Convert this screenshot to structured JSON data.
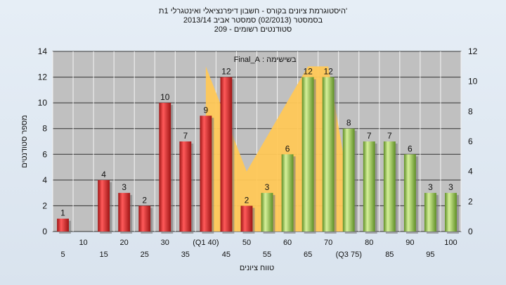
{
  "titles": {
    "line1": "'היסטוגרמת ציונים בקורס - חשבון דיפרנציאלי ואינטגרלי 1ת",
    "line2": "בסמסטר  (02/2013)  סמסטר אביב 2013/14",
    "line3": "סטודנטים רשומים - 209"
  },
  "colors": {
    "fail": "#d32222",
    "pass": "#8cc63f",
    "area": "#ffc857",
    "plot_bg": "#c0c0c0"
  },
  "chart_data": {
    "type": "bar",
    "categories": [
      "5",
      "10",
      "15",
      "20",
      "25",
      "30",
      "35",
      "(Q1 40)",
      "45",
      "50",
      "55",
      "60",
      "65",
      "70",
      "(Q3 75)",
      "80",
      "85",
      "90",
      "95",
      "100"
    ],
    "values": [
      1,
      0,
      4,
      3,
      2,
      10,
      7,
      9,
      12,
      2,
      3,
      6,
      12,
      12,
      8,
      7,
      7,
      6,
      3,
      3
    ],
    "bar_colors": [
      "fail",
      "fail",
      "fail",
      "fail",
      "fail",
      "fail",
      "fail",
      "fail",
      "fail",
      "fail",
      "pass",
      "pass",
      "pass",
      "pass",
      "pass",
      "pass",
      "pass",
      "pass",
      "pass",
      "pass"
    ],
    "value_labels": [
      "1",
      "",
      "4",
      "3",
      "2",
      "10",
      "7",
      "9",
      "12",
      "2",
      "3",
      "6",
      "12",
      "12",
      "8",
      "7",
      "7",
      "6",
      "3",
      "3"
    ],
    "area_series": {
      "x_index": [
        7.5,
        9.5,
        12.5,
        13.5,
        14.5
      ],
      "values": [
        11,
        4,
        11,
        11,
        3
      ]
    },
    "annotation": "בשישימה : Final_A",
    "xlabel": "טווח ציונים",
    "ylabel": "מספר סטודנטים",
    "ylim": [
      0,
      14
    ],
    "y_ticks": [
      0,
      2,
      4,
      6,
      8,
      10,
      12,
      14
    ],
    "y2lim": [
      0,
      12
    ],
    "y2_ticks": [
      0,
      2,
      4,
      6,
      8,
      10,
      12
    ],
    "grid": true
  }
}
